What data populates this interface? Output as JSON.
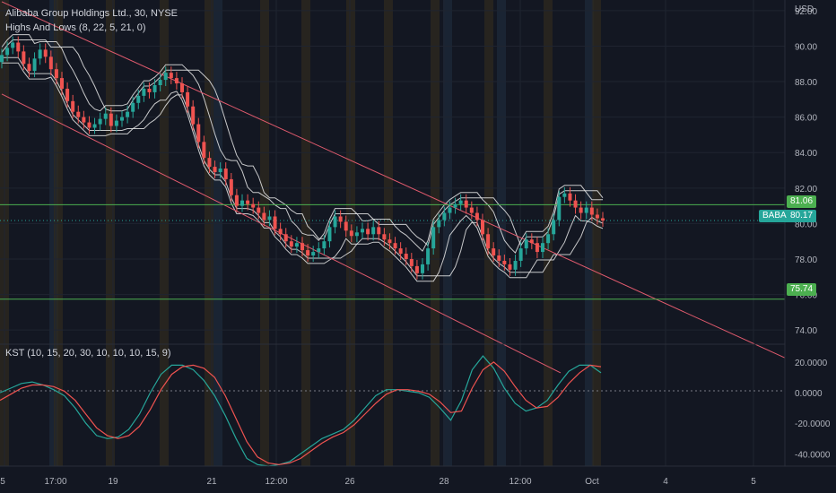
{
  "header": {
    "title": "Alibaba Group Holdings Ltd., 30, NYSE",
    "indicator": "Highs And Lows (8, 22, 5, 21, 0)"
  },
  "currency": "USD",
  "price_axis": [
    "92.00",
    "90.00",
    "88.00",
    "86.00",
    "84.00",
    "82.00",
    "80.00",
    "78.00",
    "76.00",
    "74.00"
  ],
  "kst": {
    "label": "KST (10, 15, 20, 30, 10, 10, 10, 15, 9)",
    "axis": [
      "20.0000",
      "0.0000",
      "-20.0000",
      "-40.0000"
    ]
  },
  "time_axis": [
    "5",
    "17:00",
    "19",
    "21",
    "12:00",
    "26",
    "28",
    "12:00",
    "Oct",
    "4",
    "5"
  ],
  "levels": {
    "upper": {
      "value": 81.06,
      "label": "81.06",
      "color": "#4caf50"
    },
    "lower": {
      "value": 75.74,
      "label": "75.74",
      "color": "#4caf50"
    }
  },
  "last_price": {
    "symbol": "BABA",
    "value": "80.17",
    "color": "#26a69a"
  },
  "chart_data": {
    "type": "candlestick",
    "title": "Alibaba Group Holdings Ltd., 30, NYSE",
    "price_range": [
      73.2,
      92.6
    ],
    "close_series": [
      89.5,
      89.9,
      90.2,
      89.7,
      89.0,
      88.6,
      89.3,
      89.8,
      89.4,
      88.7,
      88.2,
      87.6,
      86.9,
      86.3,
      86.0,
      85.7,
      85.4,
      85.6,
      85.9,
      86.2,
      85.5,
      85.8,
      86.0,
      86.3,
      86.8,
      87.2,
      87.6,
      87.4,
      87.8,
      88.1,
      88.5,
      88.2,
      87.9,
      87.4,
      86.6,
      85.6,
      84.6,
      83.7,
      83.2,
      82.9,
      83.1,
      82.5,
      81.6,
      81.0,
      81.3,
      81.1,
      80.9,
      80.6,
      80.2,
      80.4,
      79.7,
      79.4,
      79.0,
      78.7,
      78.9,
      78.5,
      78.2,
      78.4,
      78.6,
      79.0,
      79.8,
      80.4,
      80.1,
      79.6,
      79.3,
      79.5,
      79.7,
      79.4,
      79.8,
      79.4,
      79.1,
      78.9,
      78.6,
      78.3,
      78.0,
      77.6,
      77.2,
      77.7,
      78.6,
      79.8,
      80.2,
      80.6,
      80.9,
      81.1,
      81.3,
      80.9,
      80.6,
      80.2,
      79.4,
      78.6,
      78.2,
      77.9,
      77.7,
      77.4,
      77.9,
      78.6,
      79.1,
      78.9,
      78.4,
      78.9,
      79.4,
      80.2,
      81.5,
      81.7,
      81.3,
      80.9,
      80.6,
      80.9,
      80.5,
      80.3,
      80.17
    ],
    "channel": {
      "upper": [
        [
          0,
          92.5
        ],
        [
          110,
          77.1
        ]
      ],
      "lower": [
        [
          0,
          87.3
        ],
        [
          110,
          70.4
        ]
      ]
    },
    "kst_series": [
      {
        "name": "KST",
        "color": "#26a69a",
        "values": [
          0,
          3,
          6,
          7,
          5,
          2,
          -2,
          -10,
          -20,
          -28,
          -30,
          -29,
          -24,
          -14,
          0,
          12,
          18,
          18,
          15,
          8,
          -2,
          -15,
          -30,
          -43,
          -47,
          -48,
          -47,
          -45,
          -40,
          -35,
          -30,
          -27,
          -24,
          -18,
          -10,
          -2,
          2,
          2,
          1,
          0,
          -3,
          -10,
          -18,
          -5,
          15,
          24,
          16,
          3,
          -7,
          -12,
          -10,
          -5,
          5,
          14,
          18,
          18,
          13
        ]
      },
      {
        "name": "Signal",
        "color": "#ef5350",
        "values": [
          -5,
          -1,
          3,
          5,
          5,
          4,
          1,
          -5,
          -14,
          -23,
          -28,
          -30,
          -28,
          -22,
          -11,
          2,
          12,
          17,
          18,
          16,
          10,
          -2,
          -17,
          -32,
          -42,
          -46,
          -47,
          -46,
          -43,
          -38,
          -33,
          -29,
          -26,
          -21,
          -14,
          -7,
          -1,
          2,
          2,
          1,
          -1,
          -6,
          -13,
          -12,
          3,
          15,
          20,
          14,
          4,
          -5,
          -10,
          -9,
          -3,
          6,
          13,
          18,
          17
        ]
      }
    ],
    "kst_range": [
      -48,
      27
    ],
    "legend": "none"
  }
}
